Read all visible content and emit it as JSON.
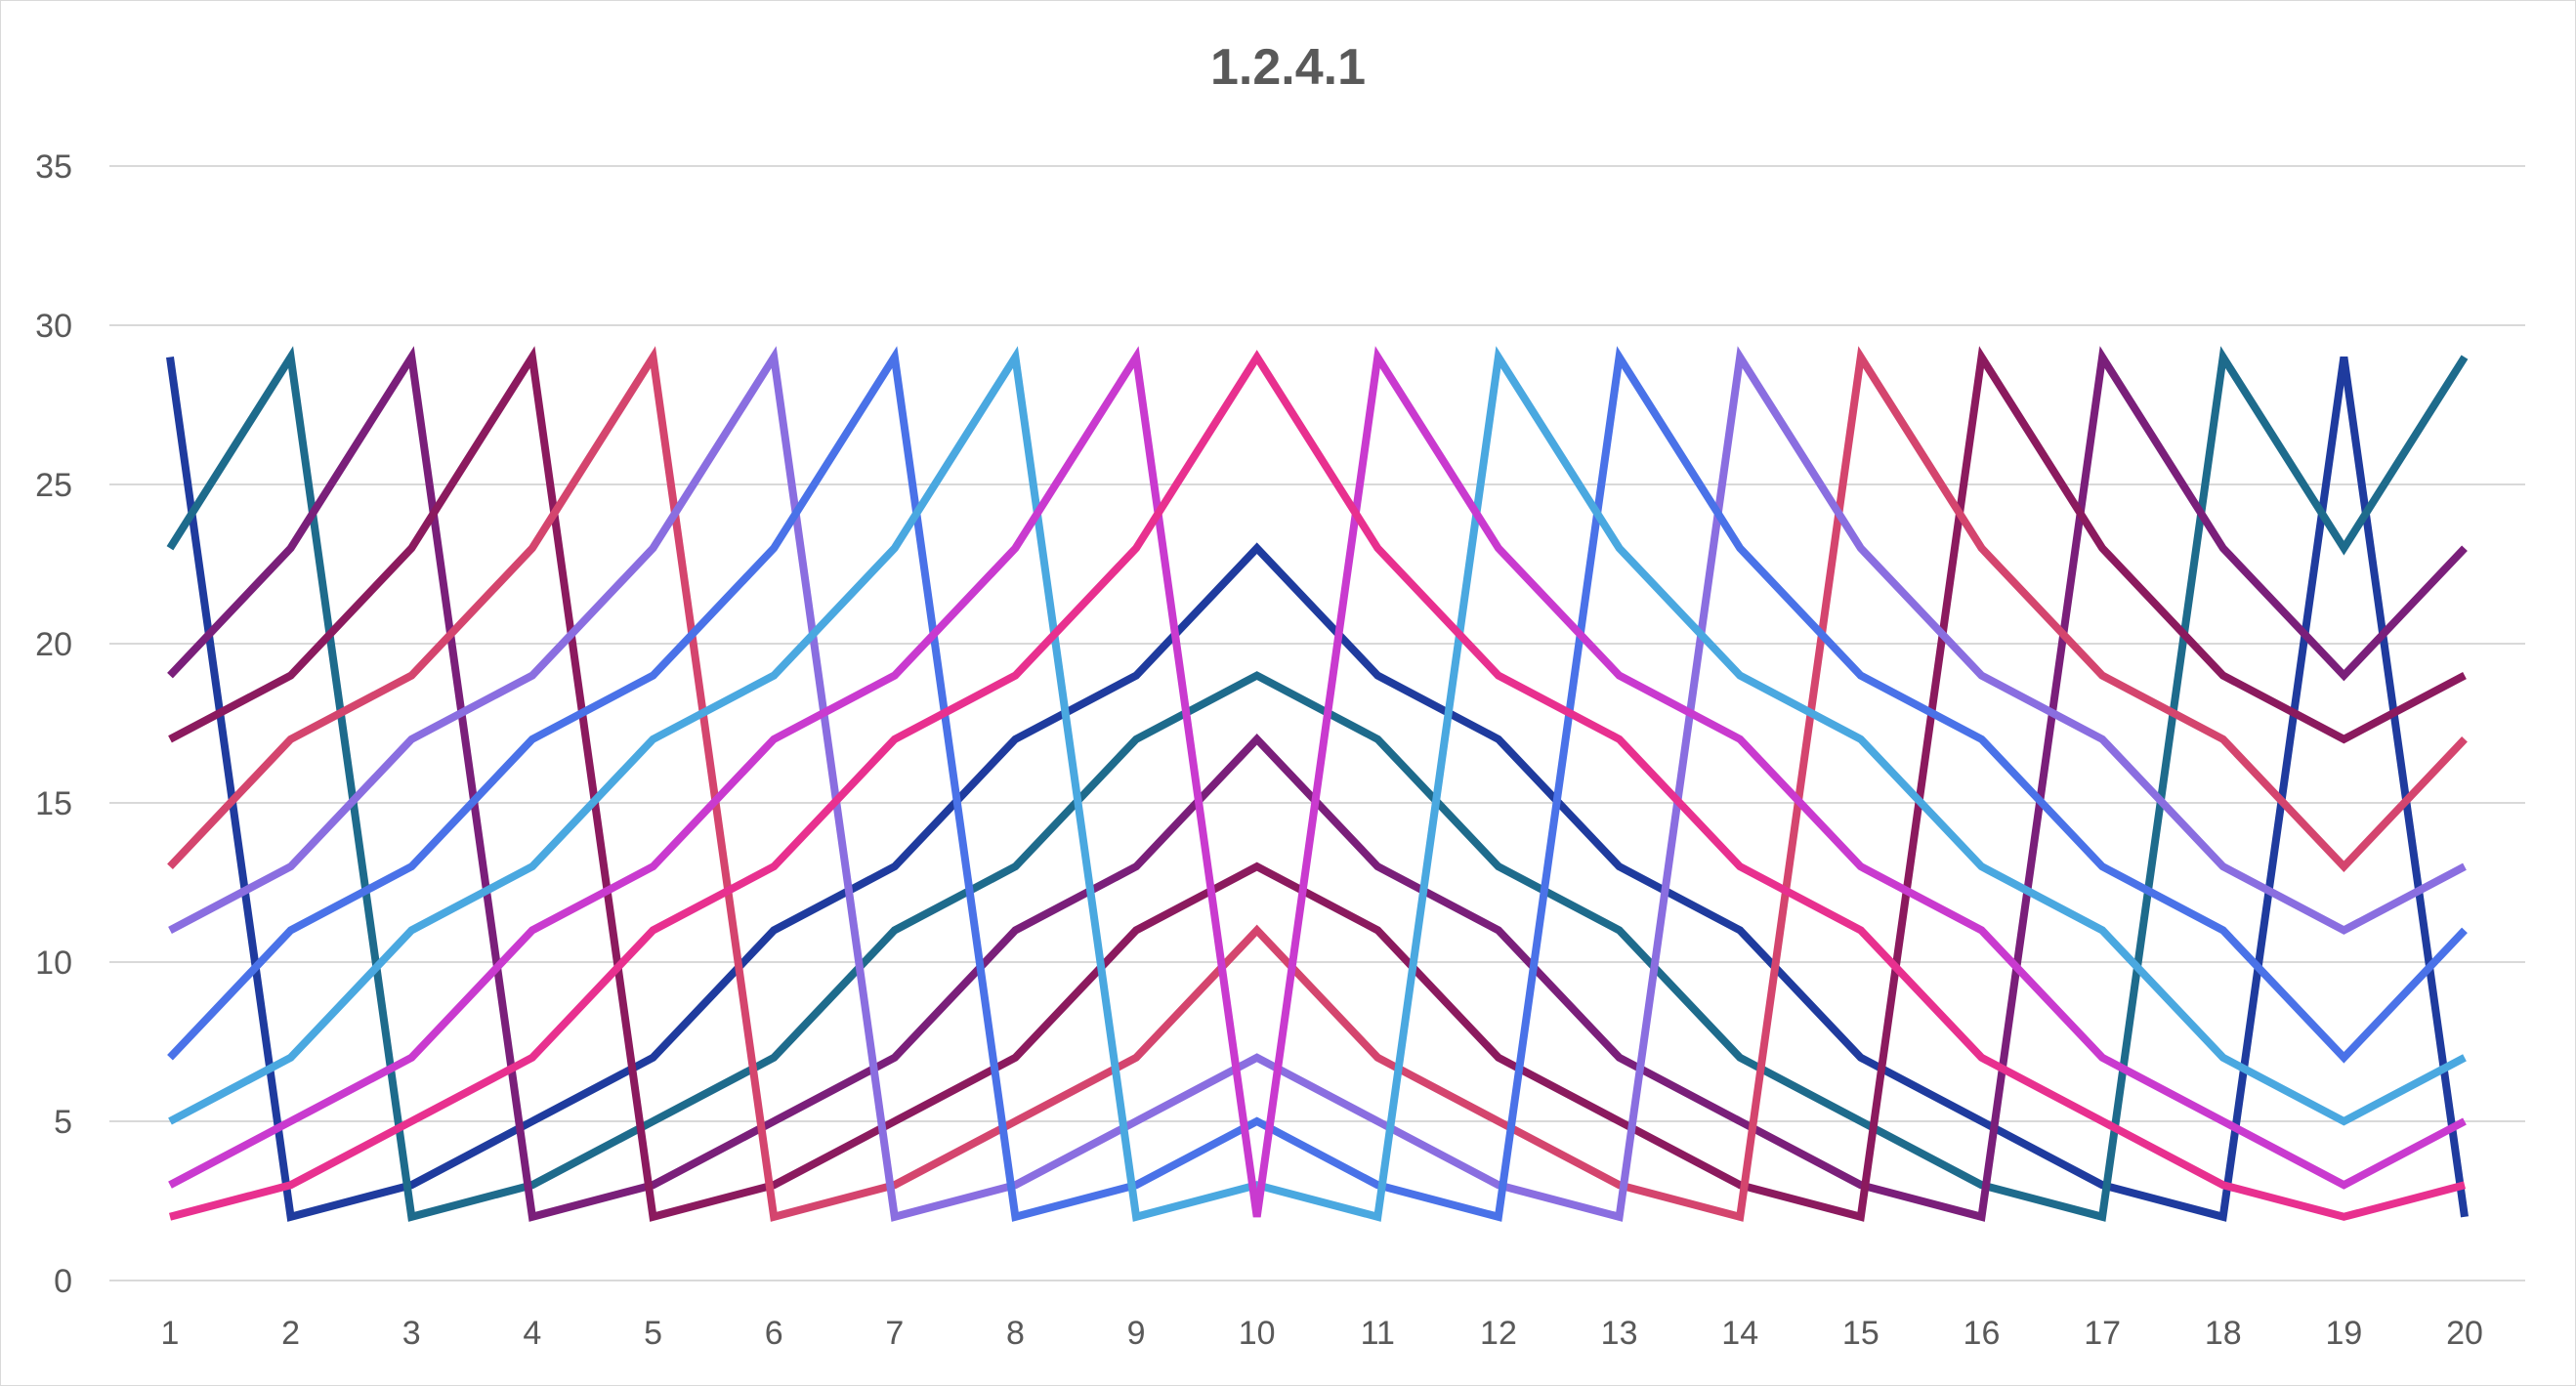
{
  "chart_data": {
    "type": "line",
    "title": "1.2.4.1",
    "xlabel": "",
    "ylabel": "",
    "x": [
      1,
      2,
      3,
      4,
      5,
      6,
      7,
      8,
      9,
      10,
      11,
      12,
      13,
      14,
      15,
      16,
      17,
      18,
      19,
      20
    ],
    "ylim": [
      0,
      35
    ],
    "yticks": [
      0,
      5,
      10,
      15,
      20,
      25,
      30,
      35
    ],
    "grid": true,
    "legend": "none",
    "series": [
      {
        "color": "#1f3b9e",
        "values": [
          29,
          2,
          3,
          5,
          7,
          11,
          13,
          17,
          19,
          23,
          19,
          17,
          13,
          11,
          7,
          5,
          3,
          2,
          29,
          2
        ]
      },
      {
        "color": "#1e6b8c",
        "values": [
          23,
          29,
          2,
          3,
          5,
          7,
          11,
          13,
          17,
          19,
          17,
          13,
          11,
          7,
          5,
          3,
          2,
          29,
          23,
          29
        ]
      },
      {
        "color": "#7a1f7a",
        "values": [
          19,
          23,
          29,
          2,
          3,
          5,
          7,
          11,
          13,
          17,
          13,
          11,
          7,
          5,
          3,
          2,
          29,
          23,
          19,
          23
        ]
      },
      {
        "color": "#8b1a5e",
        "values": [
          17,
          19,
          23,
          29,
          2,
          3,
          5,
          7,
          11,
          13,
          11,
          7,
          5,
          3,
          2,
          29,
          23,
          19,
          17,
          19
        ]
      },
      {
        "color": "#d4456e",
        "values": [
          13,
          17,
          19,
          23,
          29,
          2,
          3,
          5,
          7,
          11,
          7,
          5,
          3,
          2,
          29,
          23,
          19,
          17,
          13,
          17
        ]
      },
      {
        "color": "#8a6ee0",
        "values": [
          11,
          13,
          17,
          19,
          23,
          29,
          2,
          3,
          5,
          7,
          5,
          3,
          2,
          29,
          23,
          19,
          17,
          13,
          11,
          13
        ]
      },
      {
        "color": "#4a72e8",
        "values": [
          7,
          11,
          13,
          17,
          19,
          23,
          29,
          2,
          3,
          5,
          3,
          2,
          29,
          23,
          19,
          17,
          13,
          11,
          7,
          11
        ]
      },
      {
        "color": "#4aa8e0",
        "values": [
          5,
          7,
          11,
          13,
          17,
          19,
          23,
          29,
          2,
          3,
          2,
          29,
          23,
          19,
          17,
          13,
          11,
          7,
          5,
          7
        ]
      },
      {
        "color": "#c93acf",
        "values": [
          3,
          5,
          7,
          11,
          13,
          17,
          19,
          23,
          29,
          2,
          29,
          23,
          19,
          17,
          13,
          11,
          7,
          5,
          3,
          5
        ]
      },
      {
        "color": "#e8308f",
        "values": [
          2,
          3,
          5,
          7,
          11,
          13,
          17,
          19,
          23,
          29,
          23,
          19,
          17,
          13,
          11,
          7,
          5,
          3,
          2,
          3
        ]
      }
    ]
  }
}
